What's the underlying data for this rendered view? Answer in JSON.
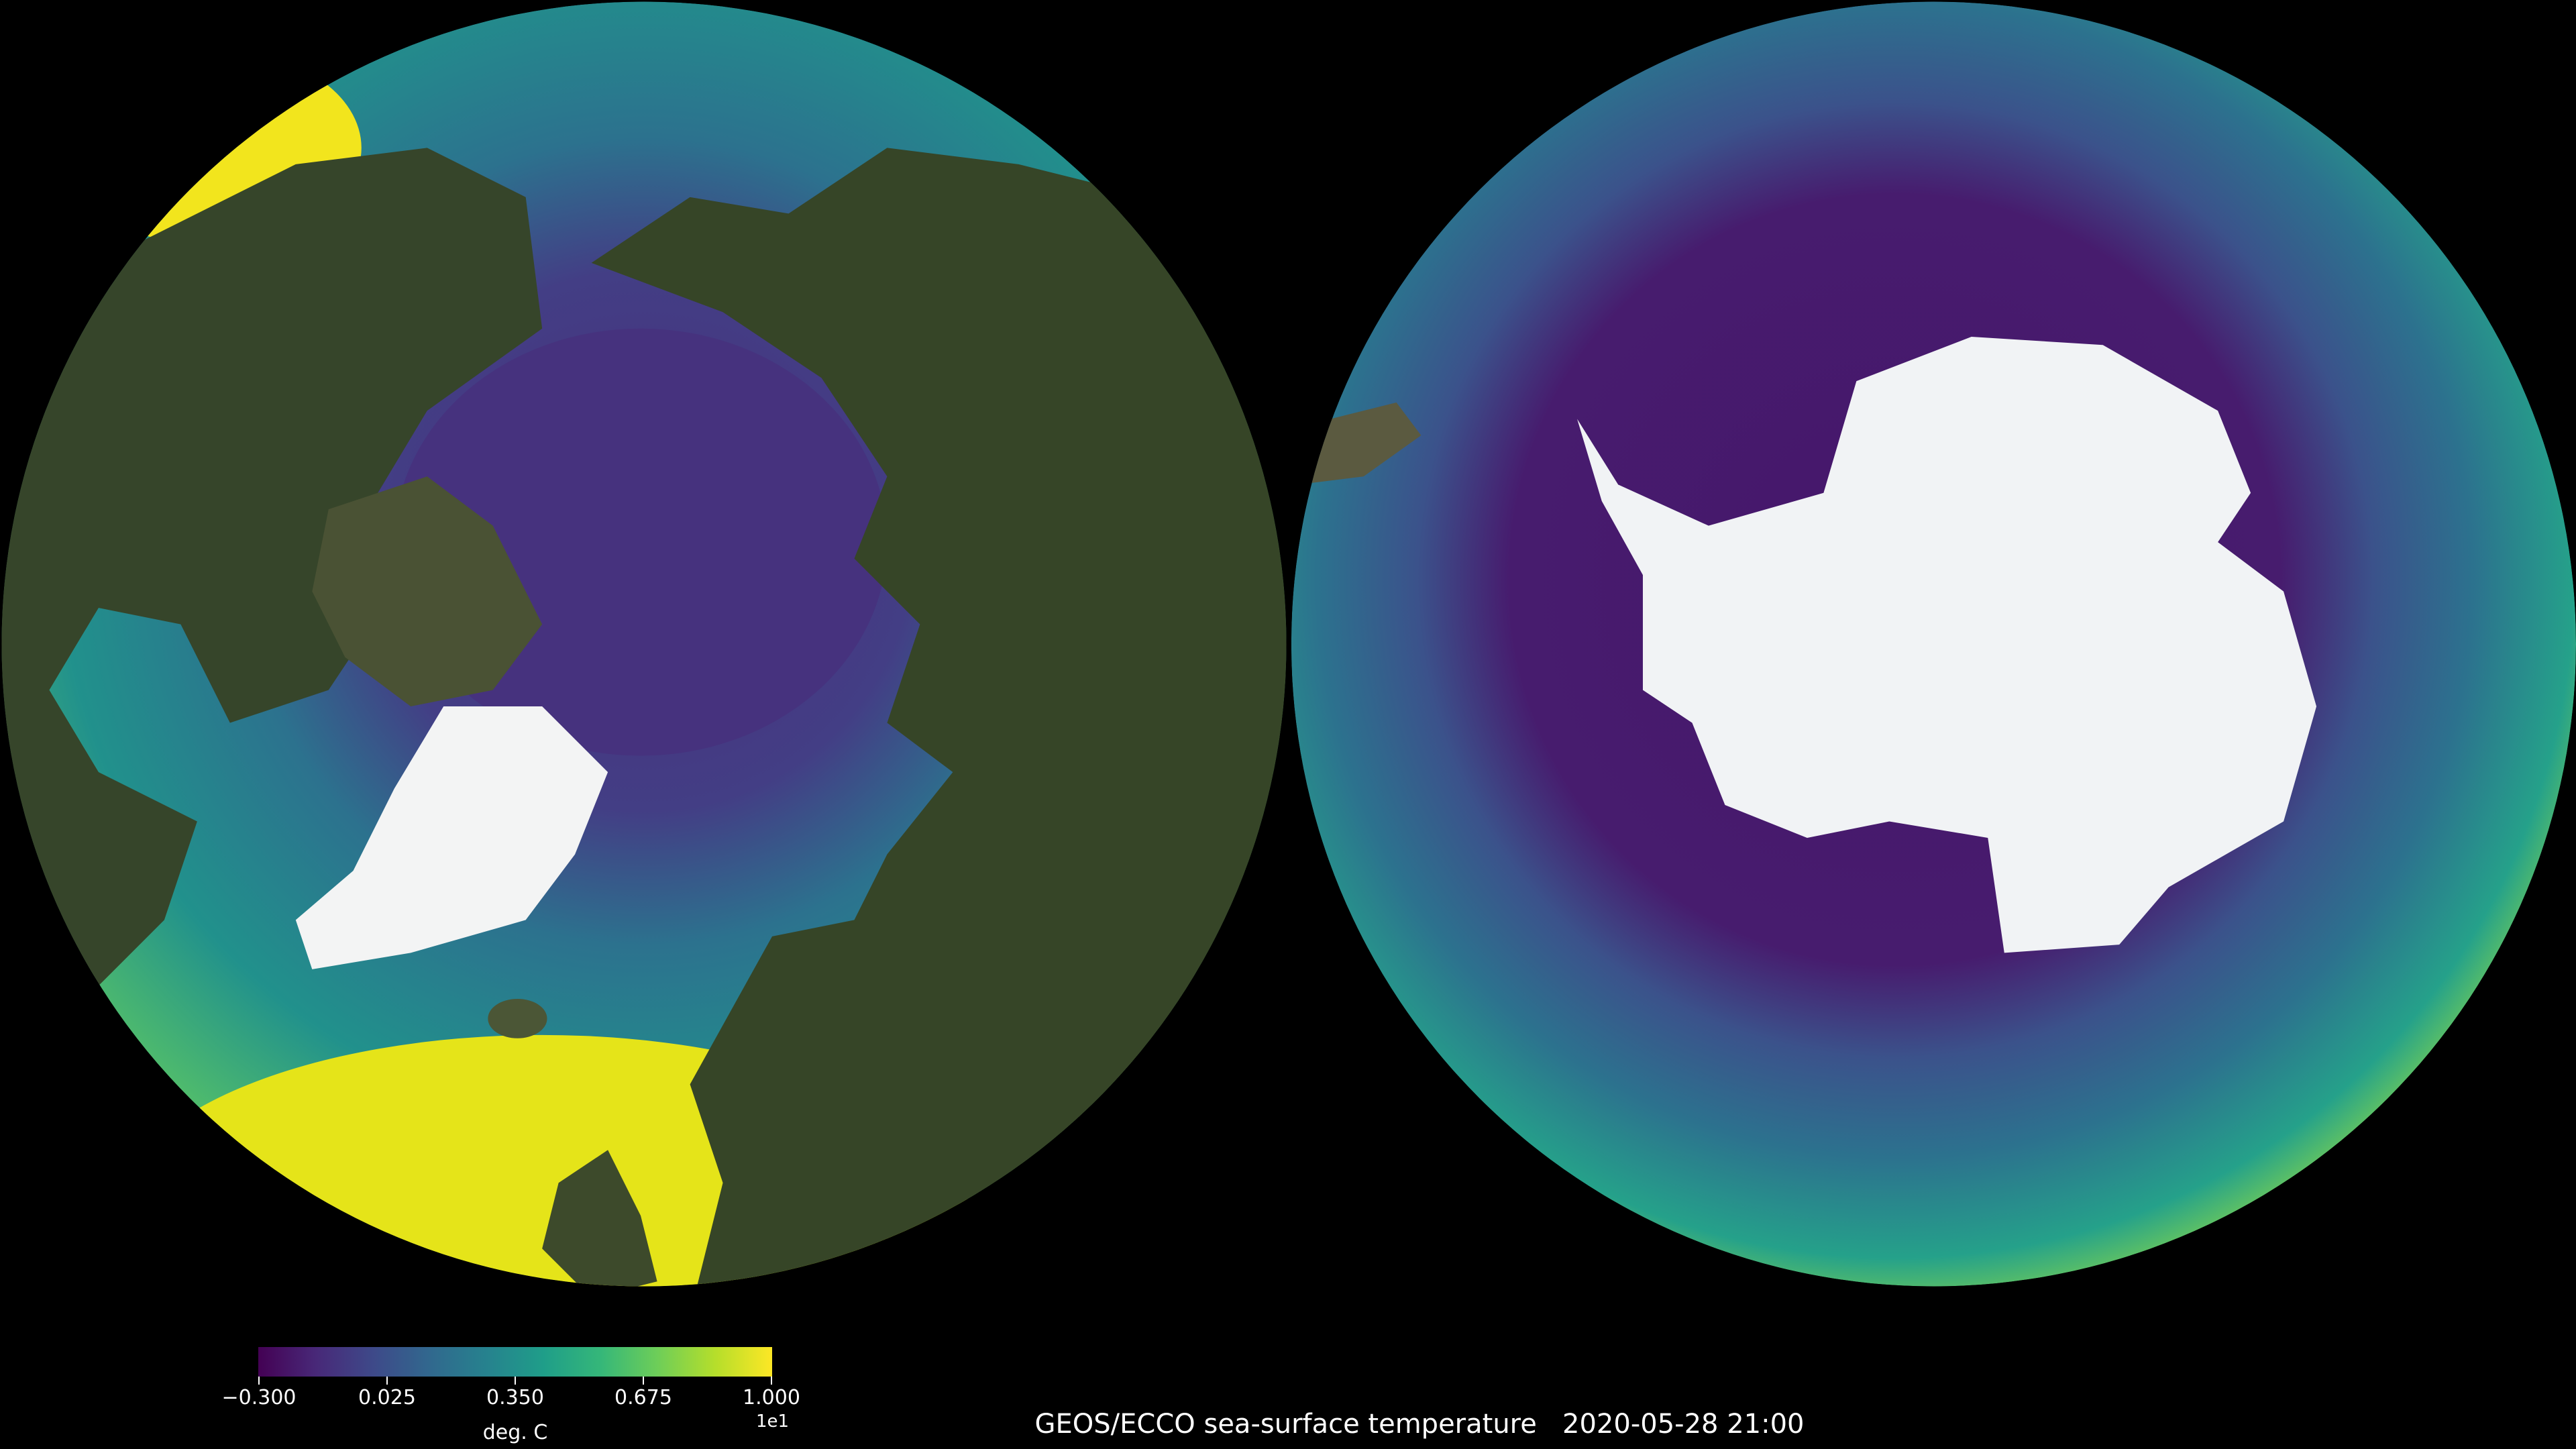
{
  "title": "GEOS/ECCO sea-surface temperature",
  "timestamp": "2020-05-28 21:00",
  "panels": [
    {
      "name": "Northern hemisphere polar view"
    },
    {
      "name": "Southern hemisphere polar view"
    }
  ],
  "colorbar": {
    "colormap": "viridis",
    "range": [
      -0.3,
      1.0
    ],
    "ticks": [
      "−0.300",
      "0.025",
      "0.350",
      "0.675",
      "1.000"
    ],
    "exponent_label": "1e1",
    "label": "deg. C",
    "colors": [
      "#440154",
      "#3e4989",
      "#26828e",
      "#35b779",
      "#fde725"
    ]
  }
}
